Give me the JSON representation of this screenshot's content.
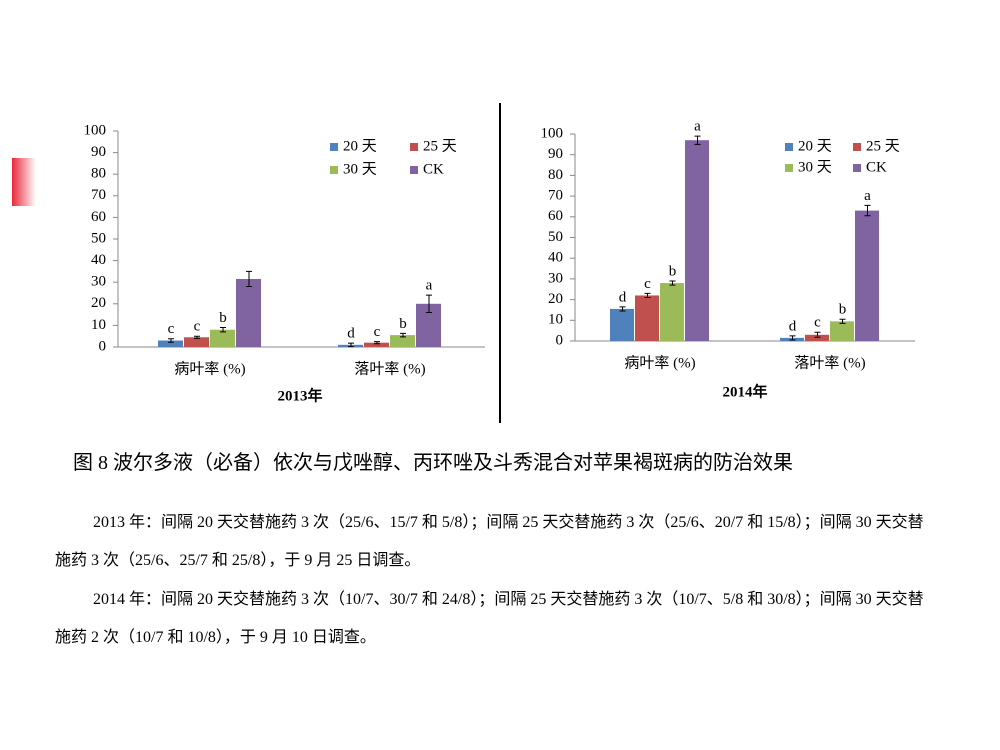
{
  "chart_data": [
    {
      "type": "bar",
      "title": "2013年",
      "categories": [
        "病叶率 (%)",
        "落叶率 (%)"
      ],
      "series": [
        {
          "name": "20 天",
          "color": "#4f81bd",
          "values": [
            3,
            1
          ],
          "errors": [
            0.8,
            0.8
          ],
          "significance": [
            "c",
            "d"
          ]
        },
        {
          "name": "25 天",
          "color": "#c0504d",
          "values": [
            4.5,
            2
          ],
          "errors": [
            0.5,
            0.5
          ],
          "significance": [
            "c",
            "c"
          ]
        },
        {
          "name": "30 天",
          "color": "#9bbb59",
          "values": [
            8,
            5.5
          ],
          "errors": [
            1,
            0.8
          ],
          "significance": [
            "b",
            "b"
          ]
        },
        {
          "name": "CK",
          "color": "#8064a2",
          "values": [
            31.5,
            20
          ],
          "errors": [
            3.5,
            4
          ],
          "significance": [
            null,
            "a"
          ]
        }
      ],
      "ylim": [
        0,
        100
      ],
      "yticks": [
        0,
        10,
        20,
        30,
        40,
        50,
        60,
        70,
        80,
        90,
        100
      ]
    },
    {
      "type": "bar",
      "title": "2014年",
      "categories": [
        "病叶率 (%)",
        "落叶率 (%)"
      ],
      "series": [
        {
          "name": "20 天",
          "color": "#4f81bd",
          "values": [
            15.5,
            1.5
          ],
          "errors": [
            1,
            1
          ],
          "significance": [
            "d",
            "d"
          ]
        },
        {
          "name": "25 天",
          "color": "#c0504d",
          "values": [
            22,
            3
          ],
          "errors": [
            1,
            1.2
          ],
          "significance": [
            "c",
            "c"
          ]
        },
        {
          "name": "30 天",
          "color": "#9bbb59",
          "values": [
            28,
            9.5
          ],
          "errors": [
            1,
            1
          ],
          "significance": [
            "b",
            "b"
          ]
        },
        {
          "name": "CK",
          "color": "#8064a2",
          "values": [
            97,
            63
          ],
          "errors": [
            2,
            2.5
          ],
          "significance": [
            "a",
            "a"
          ]
        }
      ],
      "ylim": [
        0,
        100
      ],
      "yticks": [
        0,
        10,
        20,
        30,
        40,
        50,
        60,
        70,
        80,
        90,
        100
      ]
    }
  ],
  "document": {
    "caption": "图 8  波尔多液（必备）依次与戊唑醇、丙环唑及斗秀混合对苹果褐斑病的防治效果",
    "paragraphs": [
      "2013 年：间隔 20 天交替施药 3 次（25/6、15/7 和 5/8）；间隔 25 天交替施药 3 次（25/6、20/7 和 15/8）；间隔 30 天交替施药 3 次（25/6、25/7 和 25/8），于 9 月 25 日调查。",
      "2014 年：间隔 20 天交替施药 3 次（10/7、30/7 和 24/8）；间隔 25 天交替施药 3 次（10/7、5/8 和 30/8）；间隔 30 天交替施药 2 次（10/7 和 10/8），于 9 月 10 日调查。"
    ]
  }
}
